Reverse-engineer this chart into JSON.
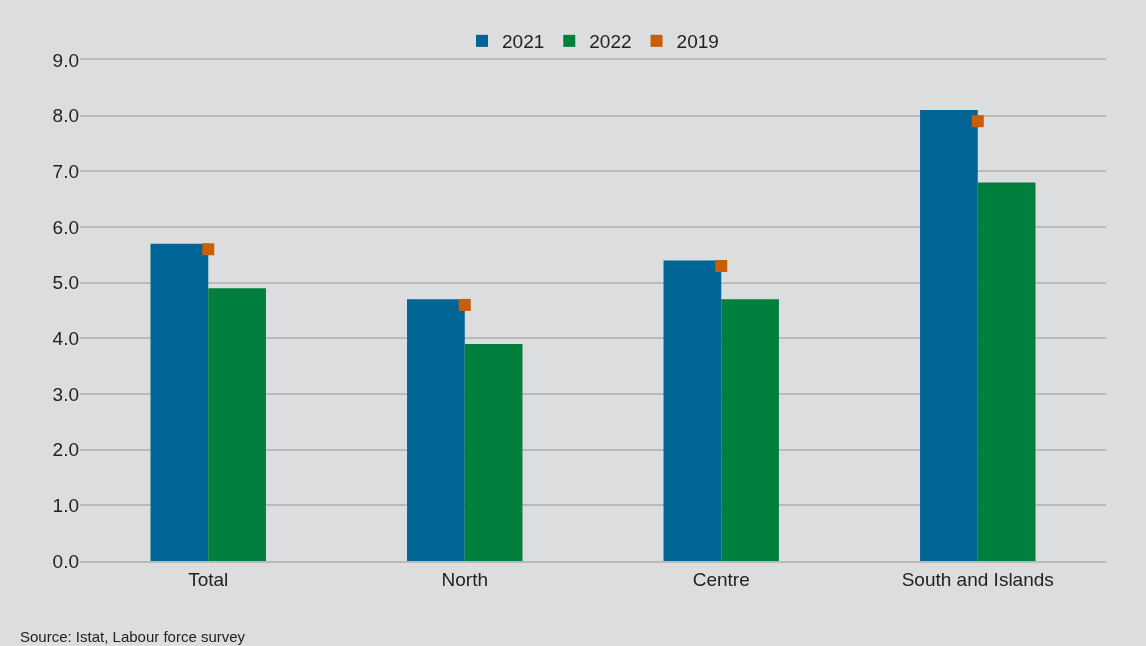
{
  "chart_data": {
    "type": "bar",
    "categories": [
      "Total",
      "North",
      "Centre",
      "South and Islands"
    ],
    "series": [
      {
        "name": "2021",
        "color": "#006494",
        "values": [
          5.7,
          4.7,
          5.4,
          8.1
        ]
      },
      {
        "name": "2022",
        "color": "#007f3d",
        "values": [
          4.9,
          3.9,
          4.7,
          6.8
        ]
      },
      {
        "name": "2019",
        "color": "#c95e04",
        "type": "scatter",
        "marker": "square",
        "values": [
          5.6,
          4.6,
          5.3,
          7.9
        ]
      }
    ],
    "ylim": [
      0,
      9
    ],
    "yticks": [
      {
        "value": 0,
        "label": "0.0"
      },
      {
        "value": 1,
        "label": "1.0"
      },
      {
        "value": 2,
        "label": "2.0"
      },
      {
        "value": 3,
        "label": "3.0"
      },
      {
        "value": 4,
        "label": "4.0"
      },
      {
        "value": 5,
        "label": "5.0"
      },
      {
        "value": 6,
        "label": "6.0"
      },
      {
        "value": 7,
        "label": "7.0"
      },
      {
        "value": 8,
        "label": "8.0"
      },
      {
        "value": 9,
        "label": "9.0"
      }
    ],
    "grid": "y",
    "legend": "top",
    "annotations": [
      "Source: Istat, Labour force survey"
    ]
  }
}
